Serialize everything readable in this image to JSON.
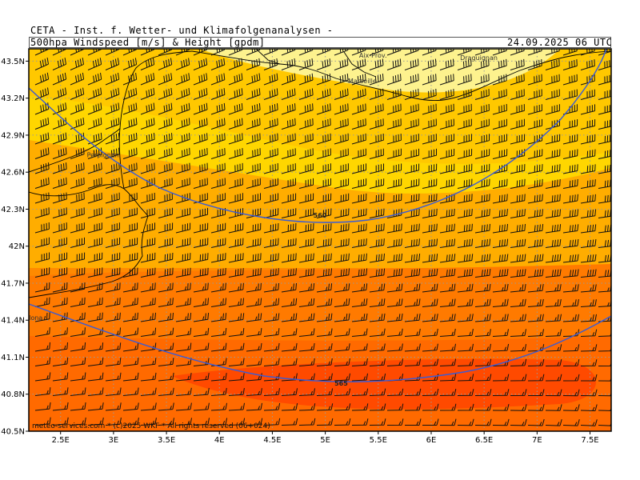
{
  "header": {
    "title": "CETA - Inst. f. Wetter- und Klimafolgenanalysen -",
    "subtitle_left": "500hpa Windspeed [m/s] & Height [gpdm]",
    "subtitle_right": "24.09.2025 06 UTC"
  },
  "map": {
    "lon_range": [
      2.2,
      7.7
    ],
    "lat_range": [
      40.5,
      43.6
    ],
    "x_ticks": [
      "2.5E",
      "3E",
      "3.5E",
      "4E",
      "4.5E",
      "5E",
      "5.5E",
      "6E",
      "6.5E",
      "7E",
      "7.5E"
    ],
    "y_ticks": [
      "43.5N",
      "43.2N",
      "42.9N",
      "42.6N",
      "42.3N",
      "42N",
      "41.7N",
      "41.4N",
      "41.1N",
      "40.8N",
      "40.5N"
    ],
    "x_tick_values": [
      2.5,
      3,
      3.5,
      4,
      4.5,
      5,
      5.5,
      6,
      6.5,
      7,
      7.5
    ],
    "y_tick_values": [
      43.5,
      43.2,
      42.9,
      42.6,
      42.3,
      42,
      41.7,
      41.4,
      41.1,
      40.8,
      40.5
    ],
    "grid": "dotted",
    "colors": {
      "fill_light": "#fdf28e",
      "fill_yellow": "#ffd600",
      "fill_orange_light": "#ffad00",
      "fill_orange": "#ff8a00",
      "fill_orange_dark": "#ff6a00",
      "fill_red": "#ff4a00",
      "contour": "#3a5bd6",
      "coast": "#000000"
    },
    "cities": [
      {
        "name": "Aix-Prov.",
        "lon": 5.45,
        "lat": 43.53
      },
      {
        "name": "Draguignan",
        "lon": 6.45,
        "lat": 43.51
      },
      {
        "name": "Marseille",
        "lon": 5.35,
        "lat": 43.32
      },
      {
        "name": "Perpignan",
        "lon": 2.9,
        "lat": 42.72
      },
      {
        "name": "Barcelona",
        "lon": 2.18,
        "lat": 41.4
      }
    ],
    "contour_labels": [
      {
        "text": "560",
        "lon": 4.95,
        "lat": 42.23
      },
      {
        "text": "565",
        "lon": 5.15,
        "lat": 40.87
      }
    ],
    "copyright": "meteo-services.com * (c)2025 WKF * All rights reserved (06+024)"
  }
}
